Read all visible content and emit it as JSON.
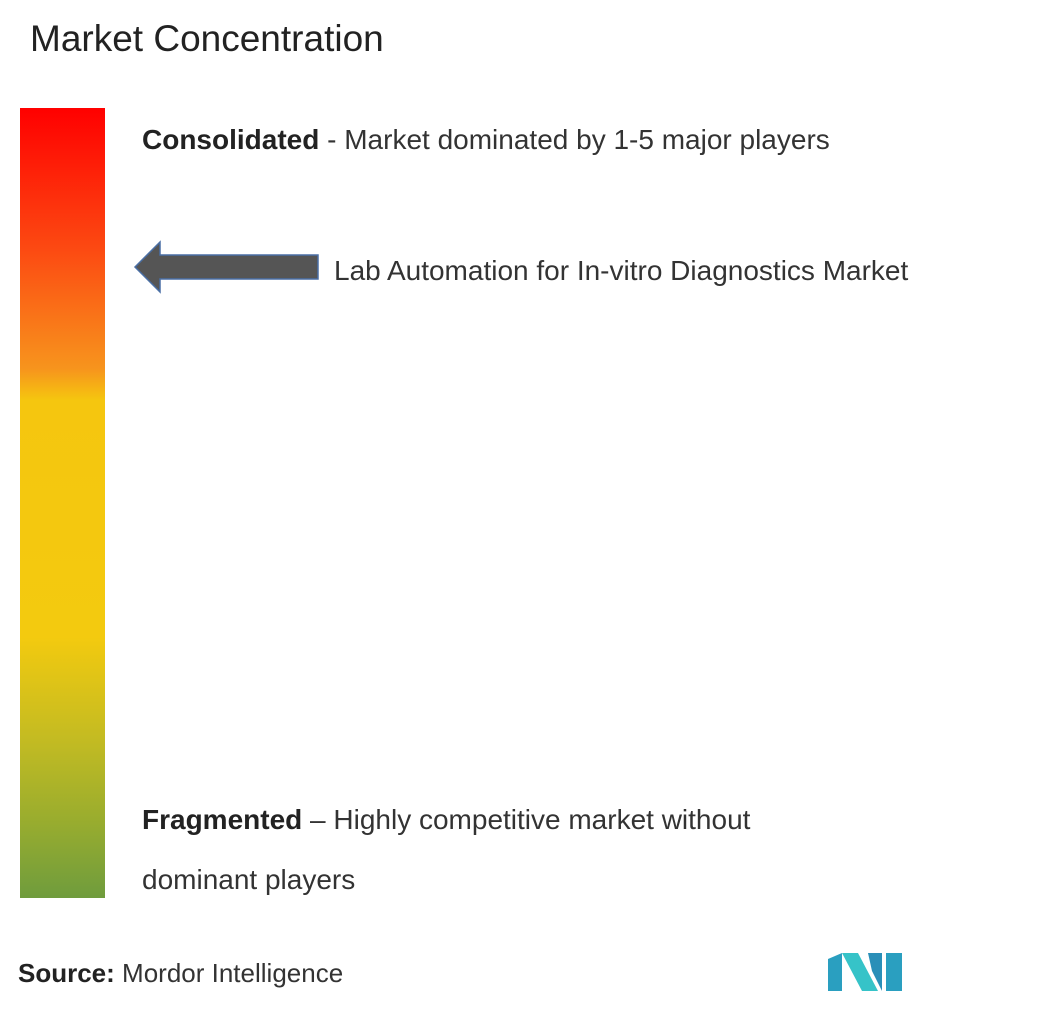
{
  "title": "Market Concentration",
  "consolidated": {
    "label": "Consolidated",
    "description": "- Market dominated by 1-5 major players"
  },
  "marker": {
    "label": "Lab Automation for In-vitro Diagnostics Market"
  },
  "fragmented": {
    "label": "Fragmented",
    "description": "– Highly competitive market without dominant players"
  },
  "source": {
    "label": "Source:",
    "name": "Mordor Intelligence"
  }
}
